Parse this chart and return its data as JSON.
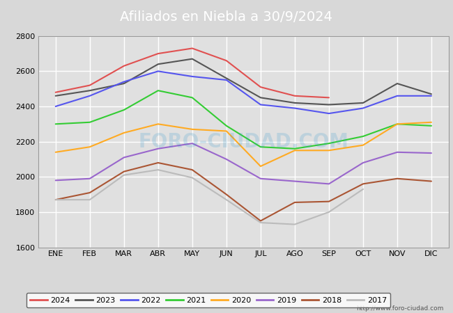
{
  "title": "Afiliados en Niebla a 30/9/2024",
  "title_color": "#ffffff",
  "title_bg_color": "#3399cc",
  "xlabel": "",
  "ylabel": "",
  "months": [
    "ENE",
    "FEB",
    "MAR",
    "ABR",
    "MAY",
    "JUN",
    "JUL",
    "AGO",
    "SEP",
    "OCT",
    "NOV",
    "DIC"
  ],
  "ylim": [
    1600,
    2800
  ],
  "yticks": [
    1600,
    1800,
    2000,
    2200,
    2400,
    2600,
    2800
  ],
  "watermark": "FORO-CIUDAD.COM",
  "url": "http://www.foro-ciudad.com",
  "series": {
    "2024": {
      "color": "#e05050",
      "data": [
        2480,
        2520,
        2630,
        2700,
        2730,
        2660,
        2510,
        2460,
        2450,
        null,
        null,
        null
      ]
    },
    "2023": {
      "color": "#555555",
      "data": [
        2460,
        2490,
        2530,
        2640,
        2670,
        2560,
        2450,
        2420,
        2410,
        2420,
        2530,
        2470
      ]
    },
    "2022": {
      "color": "#5555ee",
      "data": [
        2400,
        2460,
        2540,
        2600,
        2570,
        2550,
        2410,
        2390,
        2360,
        2390,
        2460,
        2460
      ]
    },
    "2021": {
      "color": "#33cc33",
      "data": [
        2300,
        2310,
        2380,
        2490,
        2450,
        2290,
        2170,
        2160,
        2190,
        2230,
        2300,
        2290
      ]
    },
    "2020": {
      "color": "#ffaa22",
      "data": [
        2140,
        2170,
        2250,
        2300,
        2270,
        2260,
        2060,
        2150,
        2150,
        2180,
        2300,
        2310
      ]
    },
    "2019": {
      "color": "#9966cc",
      "data": [
        1980,
        1990,
        2110,
        2160,
        2190,
        2100,
        1990,
        1975,
        1960,
        2080,
        2140,
        2135
      ]
    },
    "2018": {
      "color": "#aa5533",
      "data": [
        1870,
        1910,
        2030,
        2080,
        2040,
        1900,
        1750,
        1855,
        1860,
        1960,
        1990,
        1975
      ]
    },
    "2017": {
      "color": "#bbbbbb",
      "data": [
        1870,
        1870,
        2010,
        2040,
        1995,
        1870,
        1740,
        1730,
        1800,
        1930,
        null,
        null
      ]
    }
  },
  "bg_color": "#d8d8d8",
  "plot_bg_color": "#e0e0e0",
  "grid_color": "#ffffff",
  "legend_order": [
    "2024",
    "2023",
    "2022",
    "2021",
    "2020",
    "2019",
    "2018",
    "2017"
  ]
}
